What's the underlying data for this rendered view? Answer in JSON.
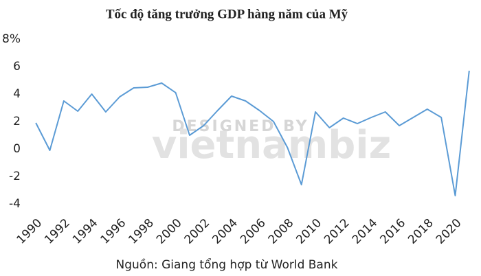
{
  "chart_data": {
    "type": "line",
    "title": "Tốc độ tăng trưởng GDP hàng năm của Mỹ",
    "source": "Nguồn: Giang tổng hợp từ World Bank",
    "watermark": {
      "top": "DESIGNED BY",
      "brand": "vietnambiz"
    },
    "x": [
      1990,
      1991,
      1992,
      1993,
      1994,
      1995,
      1996,
      1997,
      1998,
      1999,
      2000,
      2001,
      2002,
      2003,
      2004,
      2005,
      2006,
      2007,
      2008,
      2009,
      2010,
      2011,
      2012,
      2013,
      2014,
      2015,
      2016,
      2017,
      2018,
      2019,
      2020,
      2021
    ],
    "values": [
      1.9,
      -0.1,
      3.5,
      2.75,
      4.0,
      2.7,
      3.8,
      4.45,
      4.5,
      4.8,
      4.1,
      1.0,
      1.7,
      2.8,
      3.85,
      3.5,
      2.8,
      2.0,
      0.1,
      -2.6,
      2.7,
      1.55,
      2.25,
      1.85,
      2.3,
      2.7,
      1.7,
      2.3,
      2.9,
      2.3,
      -3.4,
      5.7
    ],
    "color": "#5b9bd5",
    "xlim": [
      1989.5,
      2021.5
    ],
    "xticks": [
      1990,
      1992,
      1994,
      1996,
      1998,
      2000,
      2002,
      2004,
      2006,
      2008,
      2010,
      2012,
      2014,
      2016,
      2018,
      2020
    ],
    "ylim": [
      -4,
      8
    ],
    "yticks": [
      -4,
      -2,
      0,
      2,
      4,
      6,
      {
        "value": 8,
        "label": "8%"
      }
    ],
    "grid": false
  }
}
